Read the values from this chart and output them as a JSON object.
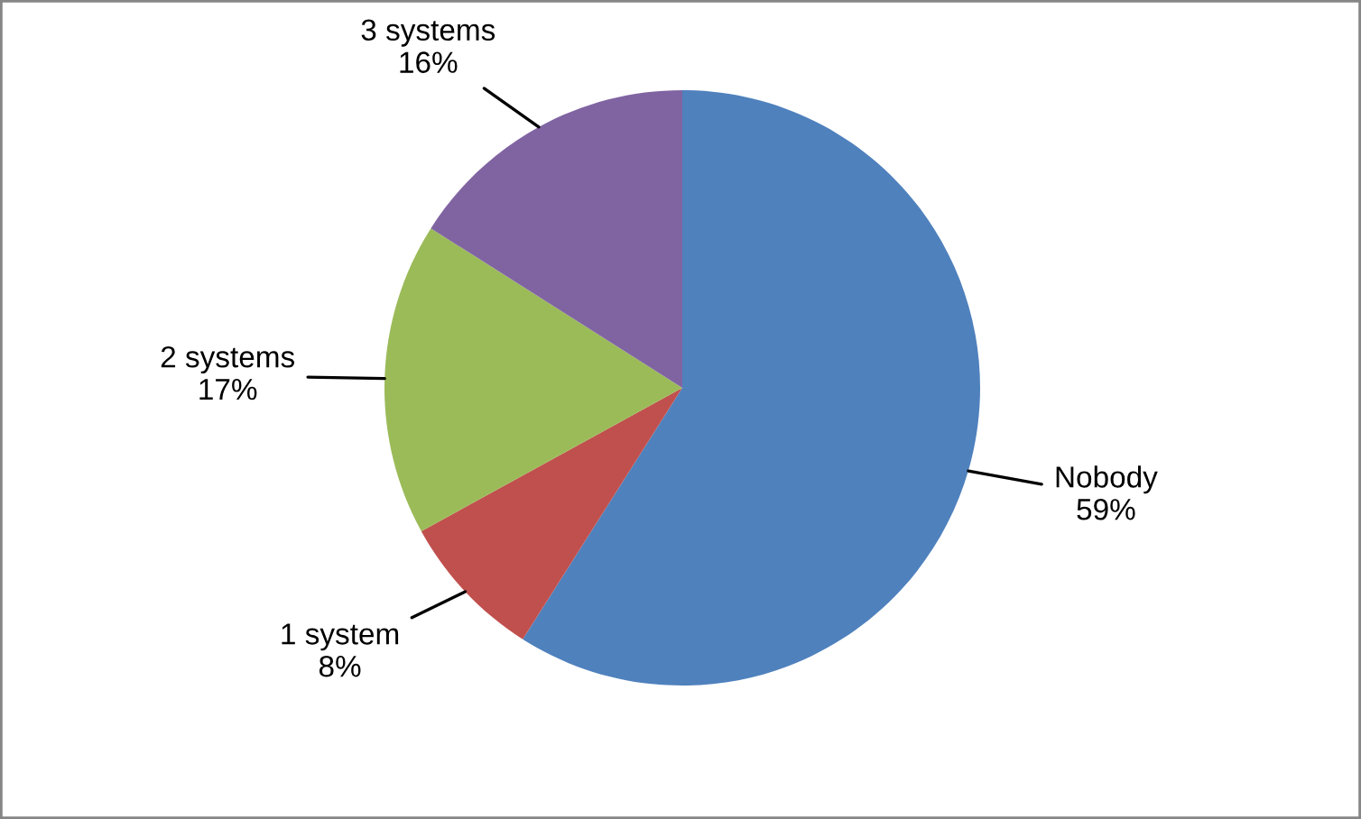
{
  "chart_data": {
    "type": "pie",
    "categories": [
      "Nobody",
      "1 system",
      "2 systems",
      "3 systems"
    ],
    "values": [
      59,
      8,
      17,
      16
    ],
    "colors": [
      "#4f81bd",
      "#c0504d",
      "#9bbb59",
      "#8064a2"
    ],
    "value_labels": [
      "59%",
      "8%",
      "17%",
      "16%"
    ]
  }
}
